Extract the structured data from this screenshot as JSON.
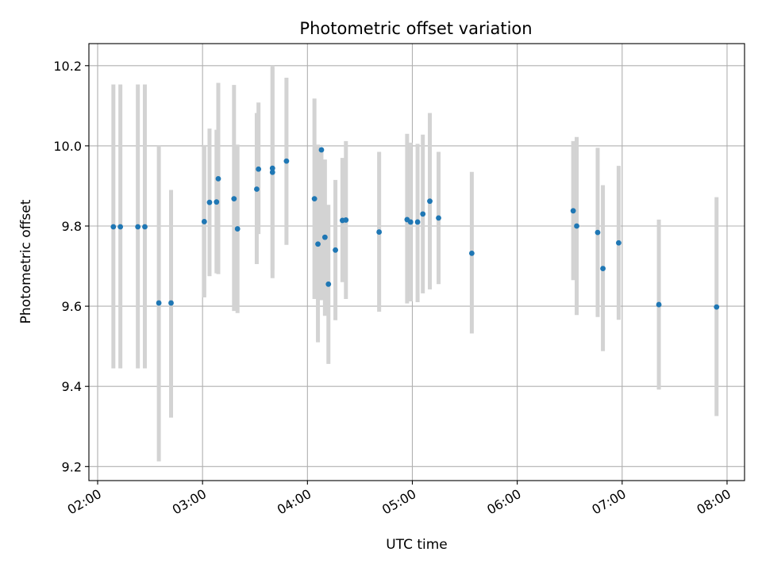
{
  "chart_data": {
    "type": "scatter",
    "title": "Photometric offset variation",
    "xlabel": "UTC time",
    "ylabel": "Photometric offset",
    "x_axis_type": "time",
    "xlim": [
      "01:55",
      "08:10"
    ],
    "ylim": [
      9.165,
      10.255
    ],
    "x_ticks": [
      "02:00",
      "03:00",
      "04:00",
      "05:00",
      "06:00",
      "07:00",
      "08:00"
    ],
    "y_ticks": [
      9.2,
      9.4,
      9.6,
      9.8,
      10.0,
      10.2
    ],
    "y_tick_labels": [
      "9.2",
      "9.4",
      "9.6",
      "9.8",
      "10.0",
      "10.2"
    ],
    "grid": true,
    "legend": "none",
    "colors": {
      "points": "#1f77b4",
      "error_bars": "#d3d3d3"
    },
    "series": [
      {
        "points": [
          {
            "x": "02:09",
            "y": 9.798,
            "lo": 9.445,
            "hi": 10.153
          },
          {
            "x": "02:13",
            "y": 9.798,
            "lo": 9.445,
            "hi": 10.153
          },
          {
            "x": "02:23",
            "y": 9.798,
            "lo": 9.445,
            "hi": 10.153
          },
          {
            "x": "02:27",
            "y": 9.798,
            "lo": 9.445,
            "hi": 10.153
          },
          {
            "x": "02:35",
            "y": 9.608,
            "lo": 9.213,
            "hi": 10.0
          },
          {
            "x": "02:42",
            "y": 9.608,
            "lo": 9.322,
            "hi": 9.89
          },
          {
            "x": "03:01",
            "y": 9.811,
            "lo": 9.622,
            "hi": 10.002
          },
          {
            "x": "03:04",
            "y": 9.859,
            "lo": 9.675,
            "hi": 10.043
          },
          {
            "x": "03:08",
            "y": 9.86,
            "lo": 9.682,
            "hi": 10.04
          },
          {
            "x": "03:09",
            "y": 9.918,
            "lo": 9.68,
            "hi": 10.157
          },
          {
            "x": "03:18",
            "y": 9.868,
            "lo": 9.588,
            "hi": 10.152
          },
          {
            "x": "03:20",
            "y": 9.793,
            "lo": 9.583,
            "hi": 10.003
          },
          {
            "x": "03:31",
            "y": 9.892,
            "lo": 9.705,
            "hi": 10.082
          },
          {
            "x": "03:32",
            "y": 9.942,
            "lo": 9.78,
            "hi": 10.108
          },
          {
            "x": "03:40",
            "y": 9.934,
            "lo": 9.67,
            "hi": 10.2
          },
          {
            "x": "03:40",
            "y": 9.944,
            "lo": 9.69,
            "hi": 10.195
          },
          {
            "x": "03:48",
            "y": 9.962,
            "lo": 9.753,
            "hi": 10.17
          },
          {
            "x": "04:04",
            "y": 9.868,
            "lo": 9.618,
            "hi": 10.118
          },
          {
            "x": "04:06",
            "y": 9.755,
            "lo": 9.51,
            "hi": 10.003
          },
          {
            "x": "04:08",
            "y": 9.99,
            "lo": 9.615,
            "hi": 9.99
          },
          {
            "x": "04:10",
            "y": 9.772,
            "lo": 9.576,
            "hi": 9.966
          },
          {
            "x": "04:12",
            "y": 9.655,
            "lo": 9.456,
            "hi": 9.853
          },
          {
            "x": "04:16",
            "y": 9.74,
            "lo": 9.565,
            "hi": 9.915
          },
          {
            "x": "04:20",
            "y": 9.814,
            "lo": 9.66,
            "hi": 9.97
          },
          {
            "x": "04:22",
            "y": 9.815,
            "lo": 9.618,
            "hi": 10.012
          },
          {
            "x": "04:41",
            "y": 9.785,
            "lo": 9.586,
            "hi": 9.985
          },
          {
            "x": "04:57",
            "y": 9.816,
            "lo": 9.607,
            "hi": 10.03
          },
          {
            "x": "04:59",
            "y": 9.81,
            "lo": 9.612,
            "hi": 10.008
          },
          {
            "x": "05:03",
            "y": 9.81,
            "lo": 9.61,
            "hi": 10.005
          },
          {
            "x": "05:06",
            "y": 9.83,
            "lo": 9.632,
            "hi": 10.028
          },
          {
            "x": "05:10",
            "y": 9.862,
            "lo": 9.642,
            "hi": 10.082
          },
          {
            "x": "05:15",
            "y": 9.82,
            "lo": 9.655,
            "hi": 9.985
          },
          {
            "x": "05:34",
            "y": 9.732,
            "lo": 9.532,
            "hi": 9.935
          },
          {
            "x": "06:32",
            "y": 9.838,
            "lo": 9.665,
            "hi": 10.012
          },
          {
            "x": "06:34",
            "y": 9.8,
            "lo": 9.578,
            "hi": 10.022
          },
          {
            "x": "06:46",
            "y": 9.784,
            "lo": 9.573,
            "hi": 9.995
          },
          {
            "x": "06:49",
            "y": 9.694,
            "lo": 9.488,
            "hi": 9.902
          },
          {
            "x": "06:58",
            "y": 9.758,
            "lo": 9.566,
            "hi": 9.95
          },
          {
            "x": "07:21",
            "y": 9.604,
            "lo": 9.392,
            "hi": 9.816
          },
          {
            "x": "07:54",
            "y": 9.598,
            "lo": 9.326,
            "hi": 9.872
          }
        ]
      }
    ]
  }
}
